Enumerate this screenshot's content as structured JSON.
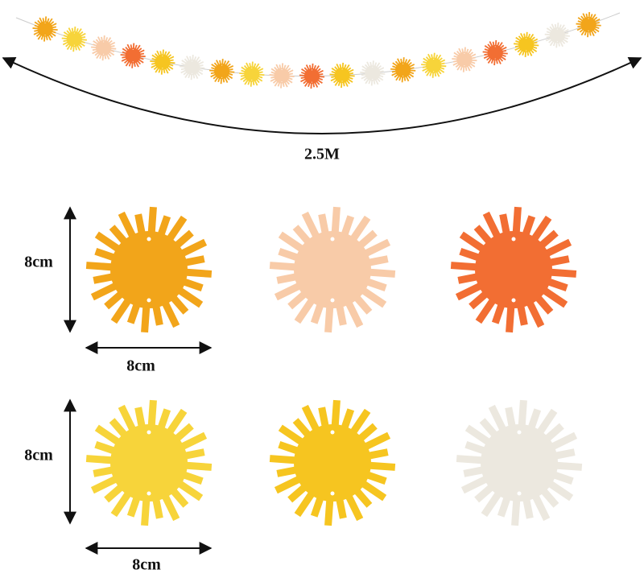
{
  "garland": {
    "length_label": "2.5M"
  },
  "rows": [
    {
      "height_label": "8cm",
      "width_label": "8cm"
    },
    {
      "height_label": "8cm",
      "width_label": "8cm"
    }
  ]
}
